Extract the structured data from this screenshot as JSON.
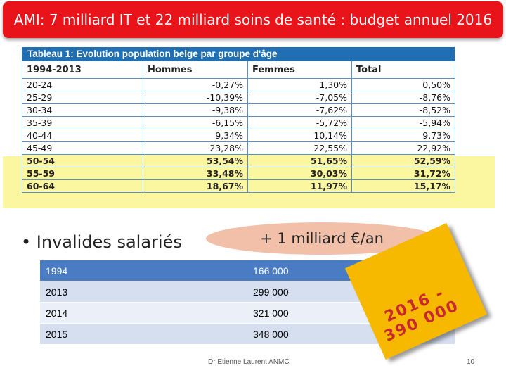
{
  "title": "AMI: 7 milliard IT et 22 milliard soins de santé : budget annuel 2016",
  "age_table": {
    "caption": "Tableau 1: Evolution population belge par groupe d'âge",
    "headers": [
      "1994-2013",
      "Hommes",
      "Femmes",
      "Total"
    ],
    "rows": [
      [
        "20-24",
        "-0,27%",
        "1,30%",
        "0,50%"
      ],
      [
        "25-29",
        "-10,39%",
        "-7,05%",
        "-8,76%"
      ],
      [
        "30-34",
        "-9,38%",
        "-7,62%",
        "-8,52%"
      ],
      [
        "35-39",
        "-6,15%",
        "-5,72%",
        "-5,94%"
      ],
      [
        "40-44",
        "9,34%",
        "10,14%",
        "9,73%"
      ],
      [
        "45-49",
        "23,28%",
        "22,55%",
        "22,92%"
      ],
      [
        "50-54",
        "53,54%",
        "51,65%",
        "52,59%"
      ],
      [
        "55-59",
        "33,48%",
        "30,03%",
        "31,72%"
      ],
      [
        "60-64",
        "18,67%",
        "11,97%",
        "15,17%"
      ]
    ],
    "highlight_color": "#fbf7a0"
  },
  "bullet": "Invalides salariés",
  "budget_note": "+ 1 milliard €/an",
  "invalid_table": {
    "rows": [
      [
        "1994",
        "166 000"
      ],
      [
        "2013",
        "299 000"
      ],
      [
        "2014",
        "321 000"
      ],
      [
        "2015",
        "348 000"
      ]
    ]
  },
  "callout": "2016 - 390 000",
  "footer": "Dr Etienne Laurent ANMC",
  "page_number": "10",
  "colors": {
    "title_bg": "#e8141a",
    "table_header": "#1f6fb2",
    "invalid_header": "#4a7cc4",
    "callout_bg": "#f7b800",
    "callout_text": "#c8282e",
    "ellipse": "#f2bfa8"
  }
}
